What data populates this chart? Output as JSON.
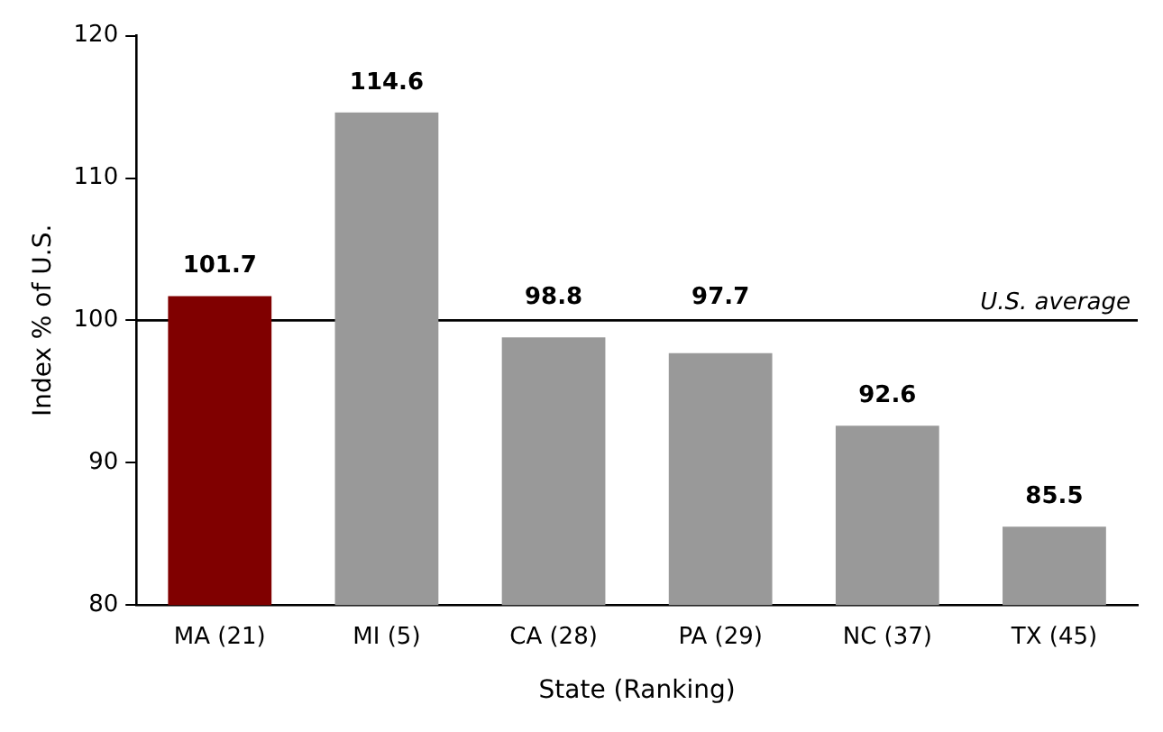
{
  "chart_data": {
    "type": "bar",
    "xlabel": "State (Ranking)",
    "ylabel": "Index % of U.S.",
    "categories": [
      "MA (21)",
      "MI (5)",
      "CA (28)",
      "PA (29)",
      "NC (37)",
      "TX (45)"
    ],
    "values": [
      101.7,
      114.6,
      98.8,
      97.7,
      92.6,
      85.5
    ],
    "colors": [
      "#800000",
      "#999999",
      "#999999",
      "#999999",
      "#999999",
      "#999999"
    ],
    "ylim": [
      80,
      120
    ],
    "yticks": [
      80,
      90,
      100,
      110,
      120
    ],
    "grid": false,
    "legend": false,
    "data_labels": true,
    "ref_lines": [
      {
        "axis": "y",
        "value": 100,
        "label": "U.S. average",
        "color": "#000000"
      }
    ]
  }
}
